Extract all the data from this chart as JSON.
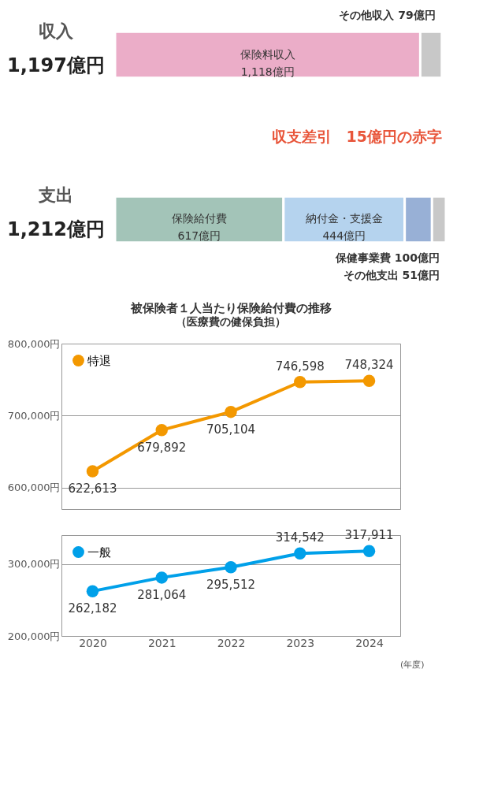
{
  "chart_data": [
    {
      "type": "bar",
      "orientation": "horizontal",
      "stacked": true,
      "categories": [
        "収入",
        "支出"
      ],
      "series": [
        {
          "name": "保険料収入",
          "color": "#ebadc8",
          "values": [
            1118,
            null
          ],
          "value_labels": [
            "1,118億円",
            null
          ]
        },
        {
          "name": "その他収入",
          "color": "#c8c8c8",
          "values": [
            79,
            null
          ],
          "value_labels": [
            "79億円",
            null
          ]
        },
        {
          "name": "保険給付費",
          "color": "#a3c4b8",
          "values": [
            null,
            617
          ],
          "value_labels": [
            null,
            "617億円"
          ]
        },
        {
          "name": "納付金・支援金",
          "color": "#b5d3ee",
          "values": [
            null,
            444
          ],
          "value_labels": [
            null,
            "444億円"
          ]
        },
        {
          "name": "保健事業費",
          "color": "#98b0d6",
          "values": [
            null,
            100
          ],
          "value_labels": [
            null,
            "100億円"
          ]
        },
        {
          "name": "その他支出",
          "color": "#c8c8c8",
          "values": [
            null,
            51
          ],
          "value_labels": [
            null,
            "51億円"
          ]
        }
      ],
      "totals": [
        "1,197億円",
        "1,212億円"
      ],
      "annotations": [
        "収支差引　15億円の赤字"
      ]
    },
    {
      "type": "line",
      "title": "被保険者１人当たり保険給付費の推移",
      "subtitle": "（医療費の健保負担）",
      "categories": [
        "2020",
        "2021",
        "2022",
        "2023",
        "2024"
      ],
      "series": [
        {
          "name": "特退",
          "color": "#f39800",
          "values": [
            622613,
            679892,
            705104,
            746598,
            748324
          ],
          "value_labels": [
            "622,613",
            "679,892",
            "705,104",
            "746,598",
            "748,324"
          ]
        }
      ],
      "ylim": [
        570000,
        800000
      ],
      "yticks": [
        {
          "value": 600000,
          "label": "600,000円"
        },
        {
          "value": 700000,
          "label": "700,000円"
        },
        {
          "value": 800000,
          "label": "800,000円"
        }
      ],
      "grid": "y",
      "legend": "top left",
      "marker": "circle",
      "line_style": "solid",
      "tick_labels": "y"
    },
    {
      "type": "line",
      "xlabel": "(年度)",
      "categories": [
        "2020",
        "2021",
        "2022",
        "2023",
        "2024"
      ],
      "series": [
        {
          "name": "一般",
          "color": "#00a0e9",
          "values": [
            262182,
            281064,
            295512,
            314542,
            317911
          ],
          "value_labels": [
            "262,182",
            "281,064",
            "295,512",
            "314,542",
            "317,911"
          ]
        }
      ],
      "ylim": [
        200000,
        340000
      ],
      "yticks": [
        {
          "value": 200000,
          "label": "200,000円"
        },
        {
          "value": 300000,
          "label": "300,000円"
        }
      ],
      "grid": "y",
      "legend": "top left",
      "marker": "circle",
      "line_style": "solid"
    }
  ]
}
